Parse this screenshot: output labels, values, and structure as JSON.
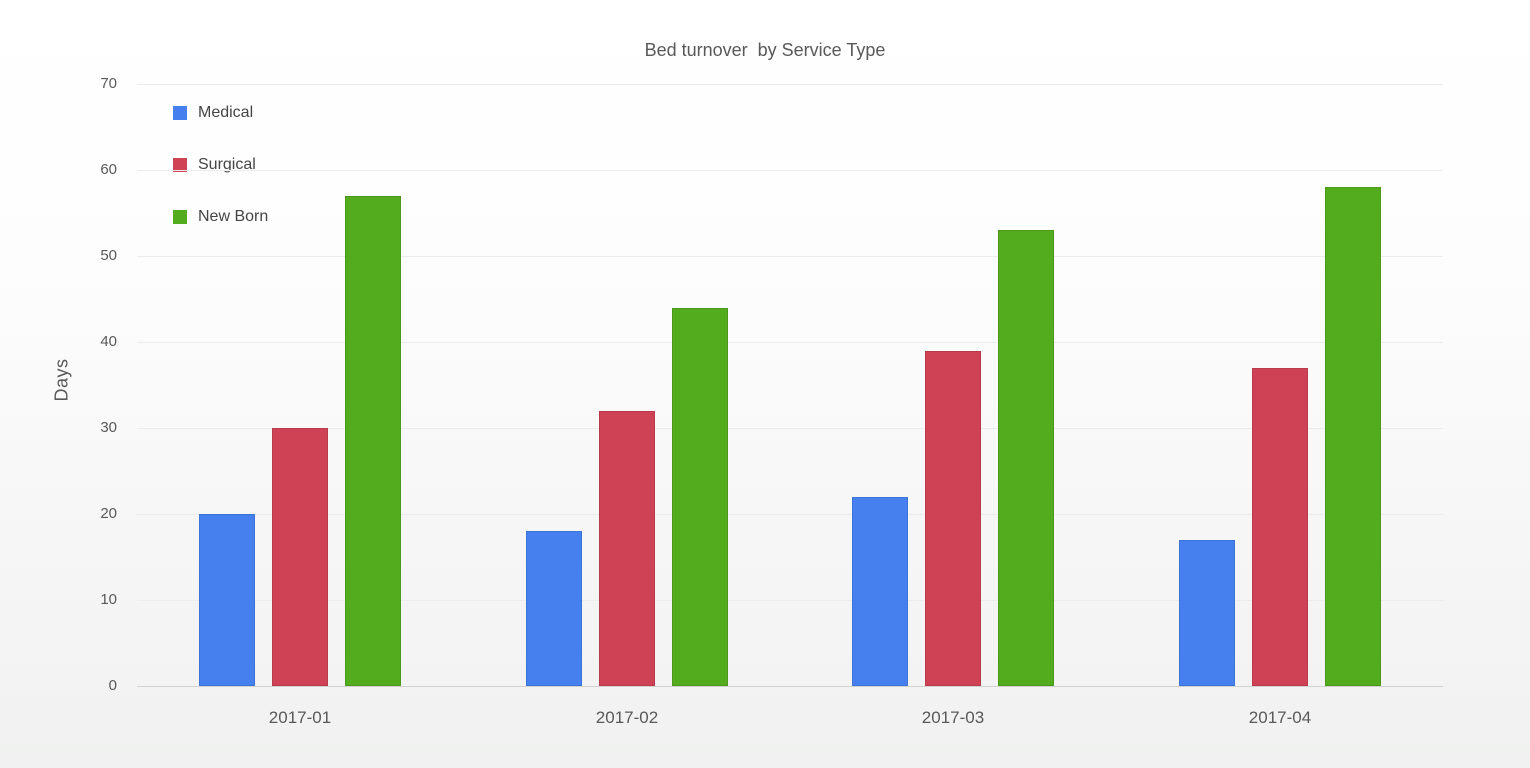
{
  "chart_data": {
    "type": "bar",
    "title": "Bed turnover  by Service Type",
    "xlabel": "",
    "ylabel": "Days",
    "categories": [
      "2017-01",
      "2017-02",
      "2017-03",
      "2017-04"
    ],
    "series": [
      {
        "name": "Medical",
        "color": "#4580ee",
        "values": [
          20,
          18,
          22,
          17
        ]
      },
      {
        "name": "Surgical",
        "color": "#cf4154",
        "values": [
          30,
          32,
          39,
          37
        ]
      },
      {
        "name": "New Born",
        "color": "#53ab1e",
        "values": [
          57,
          44,
          53,
          58
        ]
      }
    ],
    "ylim": [
      0,
      70
    ],
    "yticks": [
      0,
      10,
      20,
      30,
      40,
      50,
      60,
      70
    ],
    "grid": true,
    "legend_position": "top-left"
  }
}
